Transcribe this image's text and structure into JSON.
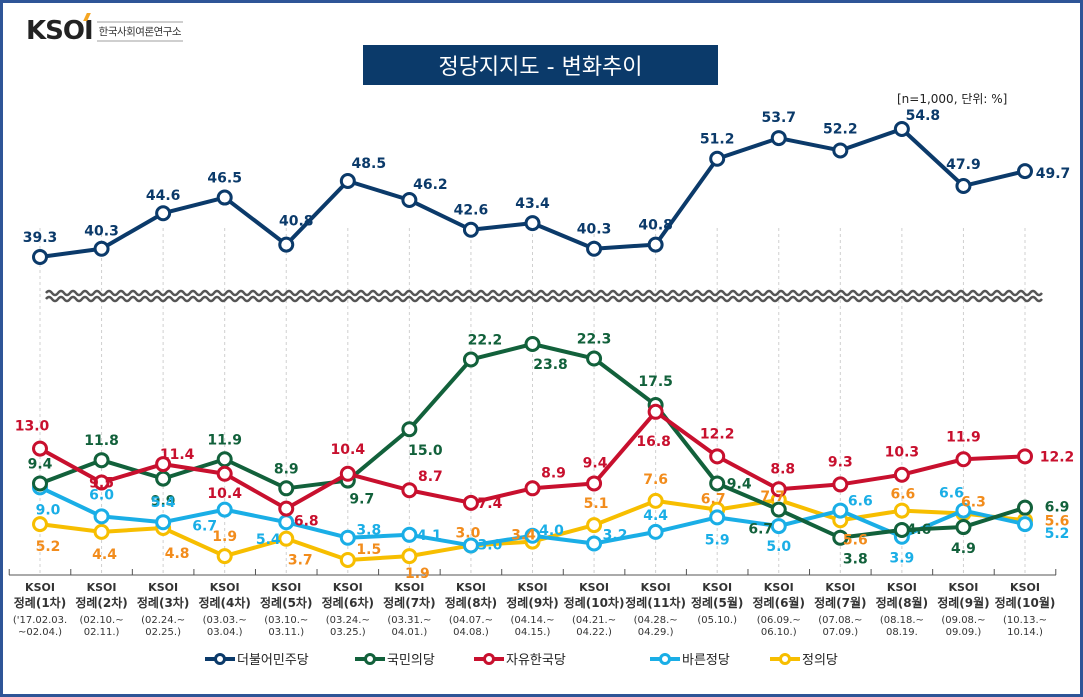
{
  "logo": {
    "mark": "KSOI",
    "subtitle": "한국사회여론연구소"
  },
  "title": "정당지지도 - 변화추이",
  "note": "[n=1,000,  단위: %]",
  "colors": {
    "minjoo": "#0b3a6a",
    "kookmin": "#12613b",
    "jayu": "#c8102e",
    "bareun": "#1aaee6",
    "jeongui": "#f7be00",
    "jeongui_label": "#f28c1c",
    "border": "#2f5597",
    "title_bg": "#0b3a6a"
  },
  "chart_data": {
    "type": "line",
    "title": "정당지지도 - 변화추이",
    "unit": "%",
    "sample": "n=1,000",
    "axis_break": true,
    "categories": [
      {
        "line1": "KSOI",
        "line2": "정례(1차)",
        "line3": "('17.02.03.",
        "line4": "~02.04.)"
      },
      {
        "line1": "KSOI",
        "line2": "정례(2차)",
        "line3": "(02.10.~",
        "line4": "02.11.)"
      },
      {
        "line1": "KSOI",
        "line2": "정례(3차)",
        "line3": "(02.24.~",
        "line4": "02.25.)"
      },
      {
        "line1": "KSOI",
        "line2": "정례(4차)",
        "line3": "(03.03.~",
        "line4": "03.04.)"
      },
      {
        "line1": "KSOI",
        "line2": "정례(5차)",
        "line3": "(03.10.~",
        "line4": "03.11.)"
      },
      {
        "line1": "KSOI",
        "line2": "정례(6차)",
        "line3": "(03.24.~",
        "line4": "03.25.)"
      },
      {
        "line1": "KSOI",
        "line2": "정례(7차)",
        "line3": "(03.31.~",
        "line4": "04.01.)"
      },
      {
        "line1": "KSOI",
        "line2": "정례(8차)",
        "line3": "(04.07.~",
        "line4": "04.08.)"
      },
      {
        "line1": "KSOI",
        "line2": "정례(9차)",
        "line3": "(04.14.~",
        "line4": "04.15.)"
      },
      {
        "line1": "KSOI",
        "line2": "정례(10차)",
        "line3": "(04.21.~",
        "line4": "04.22.)"
      },
      {
        "line1": "KSOI",
        "line2": "정례(11차)",
        "line3": "(04.28.~",
        "line4": "04.29.)"
      },
      {
        "line1": "KSOI",
        "line2": "정례(5월)",
        "line3": "(05.10.)",
        "line4": ""
      },
      {
        "line1": "KSOI",
        "line2": "정례(6월)",
        "line3": "(06.09.~",
        "line4": "06.10.)"
      },
      {
        "line1": "KSOI",
        "line2": "정례(7월)",
        "line3": "(07.08.~",
        "line4": "07.09.)"
      },
      {
        "line1": "KSOI",
        "line2": "정례(8월)",
        "line3": "(08.18.~",
        "line4": "08.19."
      },
      {
        "line1": "KSOI",
        "line2": "정례(9월)",
        "line3": "(09.08.~",
        "line4": "09.09.)"
      },
      {
        "line1": "KSOI",
        "line2": "정례(10월)",
        "line3": "(10.13.~",
        "line4": "10.14.)"
      }
    ],
    "series": [
      {
        "key": "minjoo",
        "name": "더불어민주당",
        "section": "upper",
        "values": [
          39.3,
          40.3,
          44.6,
          46.5,
          40.8,
          48.5,
          46.2,
          42.6,
          43.4,
          40.3,
          40.8,
          51.2,
          53.7,
          52.2,
          54.8,
          47.9,
          49.7
        ]
      },
      {
        "key": "kookmin",
        "name": "국민의당",
        "section": "lower",
        "values": [
          9.4,
          11.8,
          9.9,
          11.9,
          8.9,
          9.7,
          15.0,
          22.2,
          23.8,
          22.3,
          17.5,
          9.4,
          6.7,
          3.8,
          4.6,
          4.9,
          6.9
        ]
      },
      {
        "key": "jayu",
        "name": "자유한국당",
        "section": "lower",
        "values": [
          13.0,
          9.5,
          11.4,
          10.4,
          6.8,
          10.4,
          8.7,
          7.4,
          8.9,
          9.4,
          16.8,
          12.2,
          8.8,
          9.3,
          10.3,
          11.9,
          12.2
        ]
      },
      {
        "key": "bareun",
        "name": "바른정당",
        "section": "lower",
        "values": [
          9.0,
          6.0,
          5.4,
          6.7,
          5.4,
          3.8,
          4.1,
          3.0,
          4.0,
          3.2,
          4.4,
          5.9,
          5.0,
          6.6,
          3.9,
          6.6,
          5.2
        ]
      },
      {
        "key": "jeongui",
        "name": "정의당",
        "section": "lower",
        "values": [
          5.2,
          4.4,
          4.8,
          1.9,
          3.7,
          1.5,
          1.9,
          3.0,
          3.4,
          5.1,
          7.6,
          6.7,
          7.7,
          5.6,
          6.6,
          6.3,
          5.6
        ]
      }
    ],
    "legend": [
      "더불어민주당",
      "국민의당",
      "자유한국당",
      "바른정당",
      "정의당"
    ],
    "legend_position": "bottom",
    "grid": "vertical dashed"
  }
}
